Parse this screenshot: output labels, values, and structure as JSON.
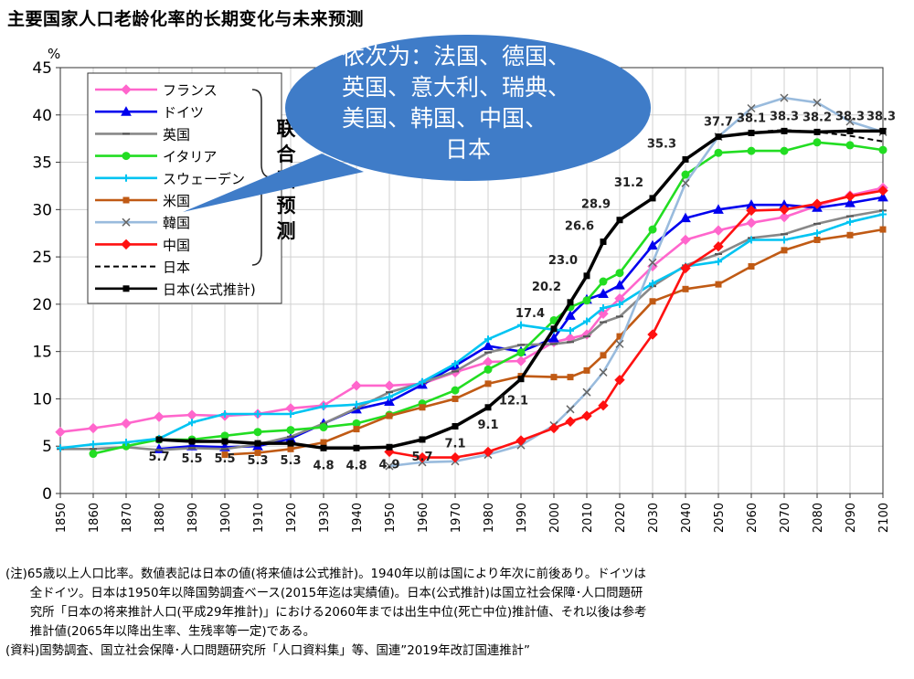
{
  "chart_data": {
    "type": "line",
    "title": "主要国家人口老龄化率的长期变化与未来预测",
    "ylabel": "%",
    "xlabel": "",
    "xlim": [
      1850,
      2100
    ],
    "ylim": [
      0,
      45
    ],
    "x_ticks": [
      "1850",
      "1860",
      "1870",
      "1880",
      "1890",
      "1900",
      "1910",
      "1920",
      "1930",
      "1940",
      "1950",
      "1960",
      "1970",
      "1980",
      "1990",
      "2000",
      "2010",
      "2020",
      "2030",
      "2040",
      "2050",
      "2060",
      "2070",
      "2080",
      "2090",
      "2100"
    ],
    "y_ticks": [
      "0",
      "5",
      "10",
      "15",
      "20",
      "25",
      "30",
      "35",
      "40",
      "45"
    ],
    "grid": true,
    "legend_position": "top-left",
    "series": [
      {
        "name": "フランス",
        "color": "#ff66cc",
        "marker": "diamond",
        "dash": false,
        "points": [
          [
            1850,
            6.5
          ],
          [
            1860,
            6.9
          ],
          [
            1870,
            7.4
          ],
          [
            1880,
            8.1
          ],
          [
            1890,
            8.3
          ],
          [
            1900,
            8.2
          ],
          [
            1910,
            8.4
          ],
          [
            1920,
            9.0
          ],
          [
            1930,
            9.3
          ],
          [
            1940,
            11.4
          ],
          [
            1950,
            11.4
          ],
          [
            1960,
            11.6
          ],
          [
            1970,
            12.8
          ],
          [
            1980,
            13.9
          ],
          [
            1990,
            14.0
          ],
          [
            2000,
            16.0
          ],
          [
            2005,
            16.4
          ],
          [
            2010,
            16.8
          ],
          [
            2015,
            19.0
          ],
          [
            2020,
            20.6
          ],
          [
            2030,
            24.0
          ],
          [
            2040,
            26.8
          ],
          [
            2050,
            27.8
          ],
          [
            2060,
            28.6
          ],
          [
            2070,
            29.2
          ],
          [
            2080,
            30.4
          ],
          [
            2090,
            31.5
          ],
          [
            2100,
            32.3
          ]
        ]
      },
      {
        "name": "ドイツ",
        "color": "#0000ee",
        "marker": "triangle",
        "dash": false,
        "points": [
          [
            1880,
            4.7
          ],
          [
            1890,
            5.0
          ],
          [
            1900,
            4.9
          ],
          [
            1910,
            5.0
          ],
          [
            1920,
            5.8
          ],
          [
            1930,
            7.4
          ],
          [
            1940,
            8.9
          ],
          [
            1950,
            9.7
          ],
          [
            1960,
            11.5
          ],
          [
            1970,
            13.5
          ],
          [
            1980,
            15.6
          ],
          [
            1990,
            15.0
          ],
          [
            2000,
            16.4
          ],
          [
            2005,
            18.8
          ],
          [
            2010,
            20.5
          ],
          [
            2015,
            21.1
          ],
          [
            2020,
            22.0
          ],
          [
            2030,
            26.2
          ],
          [
            2040,
            29.1
          ],
          [
            2050,
            30.0
          ],
          [
            2060,
            30.5
          ],
          [
            2070,
            30.5
          ],
          [
            2080,
            30.2
          ],
          [
            2090,
            30.7
          ],
          [
            2100,
            31.3
          ]
        ]
      },
      {
        "name": "英国",
        "color": "#888888",
        "marker": "dash",
        "dash": false,
        "points": [
          [
            1850,
            4.7
          ],
          [
            1860,
            4.7
          ],
          [
            1870,
            4.9
          ],
          [
            1880,
            4.6
          ],
          [
            1890,
            4.8
          ],
          [
            1900,
            4.7
          ],
          [
            1910,
            5.2
          ],
          [
            1920,
            6.0
          ],
          [
            1930,
            7.4
          ],
          [
            1940,
            9.0
          ],
          [
            1950,
            10.7
          ],
          [
            1960,
            11.7
          ],
          [
            1970,
            12.9
          ],
          [
            1980,
            14.9
          ],
          [
            1990,
            15.7
          ],
          [
            2000,
            15.8
          ],
          [
            2005,
            16.0
          ],
          [
            2010,
            16.6
          ],
          [
            2015,
            18.1
          ],
          [
            2020,
            18.7
          ],
          [
            2030,
            21.9
          ],
          [
            2040,
            24.1
          ],
          [
            2050,
            25.3
          ],
          [
            2060,
            27.0
          ],
          [
            2070,
            27.4
          ],
          [
            2080,
            28.5
          ],
          [
            2090,
            29.3
          ],
          [
            2100,
            29.9
          ]
        ]
      },
      {
        "name": "イタリア",
        "color": "#22dd22",
        "marker": "circle",
        "dash": false,
        "points": [
          [
            1860,
            4.2
          ],
          [
            1870,
            5.0
          ],
          [
            1880,
            5.7
          ],
          [
            1890,
            5.7
          ],
          [
            1900,
            6.1
          ],
          [
            1910,
            6.5
          ],
          [
            1920,
            6.7
          ],
          [
            1930,
            7.0
          ],
          [
            1940,
            7.4
          ],
          [
            1950,
            8.3
          ],
          [
            1960,
            9.5
          ],
          [
            1970,
            10.9
          ],
          [
            1980,
            13.1
          ],
          [
            1990,
            14.9
          ],
          [
            2000,
            18.3
          ],
          [
            2005,
            19.7
          ],
          [
            2010,
            20.4
          ],
          [
            2015,
            22.4
          ],
          [
            2020,
            23.3
          ],
          [
            2030,
            27.9
          ],
          [
            2040,
            33.7
          ],
          [
            2050,
            36.0
          ],
          [
            2060,
            36.2
          ],
          [
            2070,
            36.2
          ],
          [
            2080,
            37.1
          ],
          [
            2090,
            36.8
          ],
          [
            2100,
            36.3
          ]
        ]
      },
      {
        "name": "スウェーデン",
        "color": "#00c4f2",
        "marker": "plus",
        "dash": false,
        "points": [
          [
            1850,
            4.8
          ],
          [
            1860,
            5.2
          ],
          [
            1870,
            5.4
          ],
          [
            1880,
            5.8
          ],
          [
            1890,
            7.5
          ],
          [
            1900,
            8.4
          ],
          [
            1910,
            8.4
          ],
          [
            1920,
            8.4
          ],
          [
            1930,
            9.2
          ],
          [
            1940,
            9.4
          ],
          [
            1950,
            10.2
          ],
          [
            1960,
            11.8
          ],
          [
            1970,
            13.7
          ],
          [
            1980,
            16.3
          ],
          [
            1990,
            17.8
          ],
          [
            2000,
            17.3
          ],
          [
            2005,
            17.2
          ],
          [
            2010,
            18.2
          ],
          [
            2015,
            19.6
          ],
          [
            2020,
            20.0
          ],
          [
            2030,
            22.2
          ],
          [
            2040,
            24.0
          ],
          [
            2050,
            24.5
          ],
          [
            2060,
            26.8
          ],
          [
            2070,
            26.8
          ],
          [
            2080,
            27.5
          ],
          [
            2090,
            28.7
          ],
          [
            2100,
            29.5
          ]
        ]
      },
      {
        "name": "米国",
        "color": "#c05a14",
        "marker": "square",
        "dash": false,
        "points": [
          [
            1900,
            4.1
          ],
          [
            1910,
            4.3
          ],
          [
            1920,
            4.7
          ],
          [
            1930,
            5.4
          ],
          [
            1940,
            6.8
          ],
          [
            1950,
            8.2
          ],
          [
            1960,
            9.1
          ],
          [
            1970,
            10.0
          ],
          [
            1980,
            11.6
          ],
          [
            1990,
            12.4
          ],
          [
            2000,
            12.3
          ],
          [
            2005,
            12.3
          ],
          [
            2010,
            13.0
          ],
          [
            2015,
            14.6
          ],
          [
            2020,
            16.6
          ],
          [
            2030,
            20.3
          ],
          [
            2040,
            21.6
          ],
          [
            2050,
            22.1
          ],
          [
            2060,
            24.0
          ],
          [
            2070,
            25.7
          ],
          [
            2080,
            26.8
          ],
          [
            2090,
            27.3
          ],
          [
            2100,
            27.9
          ]
        ]
      },
      {
        "name": "韓国",
        "color": "#99bbdd",
        "marker": "x",
        "dash": false,
        "points": [
          [
            1950,
            2.9
          ],
          [
            1960,
            3.3
          ],
          [
            1970,
            3.4
          ],
          [
            1980,
            4.1
          ],
          [
            1990,
            5.1
          ],
          [
            2000,
            7.2
          ],
          [
            2005,
            8.9
          ],
          [
            2010,
            10.7
          ],
          [
            2015,
            12.8
          ],
          [
            2020,
            15.8
          ],
          [
            2030,
            24.4
          ],
          [
            2040,
            32.8
          ],
          [
            2050,
            37.7
          ],
          [
            2060,
            40.7
          ],
          [
            2070,
            41.8
          ],
          [
            2080,
            41.3
          ],
          [
            2090,
            39.3
          ],
          [
            2100,
            38.2
          ]
        ]
      },
      {
        "name": "中国",
        "color": "#ff1111",
        "marker": "diamond",
        "dash": false,
        "points": [
          [
            1950,
            4.4
          ],
          [
            1960,
            3.8
          ],
          [
            1970,
            3.8
          ],
          [
            1980,
            4.4
          ],
          [
            1990,
            5.6
          ],
          [
            2000,
            6.9
          ],
          [
            2005,
            7.6
          ],
          [
            2010,
            8.2
          ],
          [
            2015,
            9.3
          ],
          [
            2020,
            12.0
          ],
          [
            2030,
            16.8
          ],
          [
            2040,
            23.8
          ],
          [
            2050,
            26.1
          ],
          [
            2060,
            29.9
          ],
          [
            2070,
            30.0
          ],
          [
            2080,
            30.6
          ],
          [
            2090,
            31.4
          ],
          [
            2100,
            32.0
          ]
        ]
      },
      {
        "name": "日本",
        "color": "#000000",
        "marker": "none",
        "dash": true,
        "points": [
          [
            2065,
            38.3
          ],
          [
            2070,
            38.4
          ],
          [
            2080,
            38.2
          ],
          [
            2090,
            37.8
          ],
          [
            2100,
            37.2
          ]
        ]
      },
      {
        "name": "日本(公式推計)",
        "color": "#000000",
        "marker": "square",
        "dash": false,
        "points": [
          [
            1880,
            5.7
          ],
          [
            1890,
            5.5
          ],
          [
            1900,
            5.5
          ],
          [
            1910,
            5.3
          ],
          [
            1920,
            5.3
          ],
          [
            1930,
            4.8
          ],
          [
            1940,
            4.8
          ],
          [
            1950,
            4.9
          ],
          [
            1960,
            5.7
          ],
          [
            1970,
            7.1
          ],
          [
            1980,
            9.1
          ],
          [
            1990,
            12.1
          ],
          [
            2000,
            17.4
          ],
          [
            2005,
            20.2
          ],
          [
            2010,
            23.0
          ],
          [
            2015,
            26.6
          ],
          [
            2020,
            28.9
          ],
          [
            2030,
            31.2
          ],
          [
            2040,
            35.3
          ],
          [
            2050,
            37.7
          ],
          [
            2060,
            38.1
          ],
          [
            2070,
            38.3
          ],
          [
            2080,
            38.2
          ],
          [
            2090,
            38.3
          ],
          [
            2100,
            38.3
          ]
        ]
      }
    ],
    "value_labels": [
      {
        "x": 1880,
        "y": 5.7,
        "text": "5.7"
      },
      {
        "x": 1890,
        "y": 5.5,
        "text": "5.5"
      },
      {
        "x": 1900,
        "y": 5.5,
        "text": "5.5"
      },
      {
        "x": 1910,
        "y": 5.3,
        "text": "5.3"
      },
      {
        "x": 1920,
        "y": 5.3,
        "text": "5.3"
      },
      {
        "x": 1930,
        "y": 4.8,
        "text": "4.8"
      },
      {
        "x": 1940,
        "y": 4.8,
        "text": "4.8"
      },
      {
        "x": 1950,
        "y": 4.9,
        "text": "4.9"
      },
      {
        "x": 1960,
        "y": 5.7,
        "text": "5.7"
      },
      {
        "x": 1970,
        "y": 7.1,
        "text": "7.1"
      },
      {
        "x": 1980,
        "y": 9.1,
        "text": "9.1"
      },
      {
        "x": 1990,
        "y": 12.1,
        "text": "12.1"
      },
      {
        "x": 2000,
        "y": 17.4,
        "text": "17.4"
      },
      {
        "x": 2005,
        "y": 20.2,
        "text": "20.2"
      },
      {
        "x": 2010,
        "y": 23.0,
        "text": "23.0"
      },
      {
        "x": 2015,
        "y": 26.6,
        "text": "26.6"
      },
      {
        "x": 2020,
        "y": 28.9,
        "text": "28.9"
      },
      {
        "x": 2030,
        "y": 31.2,
        "text": "31.2"
      },
      {
        "x": 2040,
        "y": 35.3,
        "text": "35.3"
      },
      {
        "x": 2050,
        "y": 37.7,
        "text": "37.7"
      },
      {
        "x": 2060,
        "y": 38.1,
        "text": "38.1"
      },
      {
        "x": 2070,
        "y": 38.3,
        "text": "38.3"
      },
      {
        "x": 2080,
        "y": 38.2,
        "text": "38.2"
      },
      {
        "x": 2090,
        "y": 38.3,
        "text": "38.3"
      },
      {
        "x": 2100,
        "y": 38.3,
        "text": "38.3"
      }
    ],
    "annotations": {
      "bracket_label": "联合国预测",
      "callout_lines": [
        "依次为：法国、德国、",
        "英国、意大利、瑞典、",
        "美国、韩国、中国、",
        "日本"
      ],
      "callout_color": "#3f7cc8"
    }
  },
  "notes": {
    "lines": [
      "(注)65歳以上人口比率。数値表記は日本の値(将来値は公式推計)。1940年以前は国により年次に前後あり。ドイツは",
      "　　全ドイツ。日本は1950年以降国勢調査ベース(2015年迄は実績値)。日本(公式推計)は国立社会保障･人口問題研",
      "　　究所「日本の将来推計人口(平成29年推計)」における2060年までは出生中位(死亡中位)推計値、それ以後は参考",
      "　　推計値(2065年以降出生率、生残率等一定)である。",
      "(資料)国勢調査、国立社会保障･人口問題研究所「人口資料集」等、国連”2019年改訂国連推計”"
    ]
  }
}
